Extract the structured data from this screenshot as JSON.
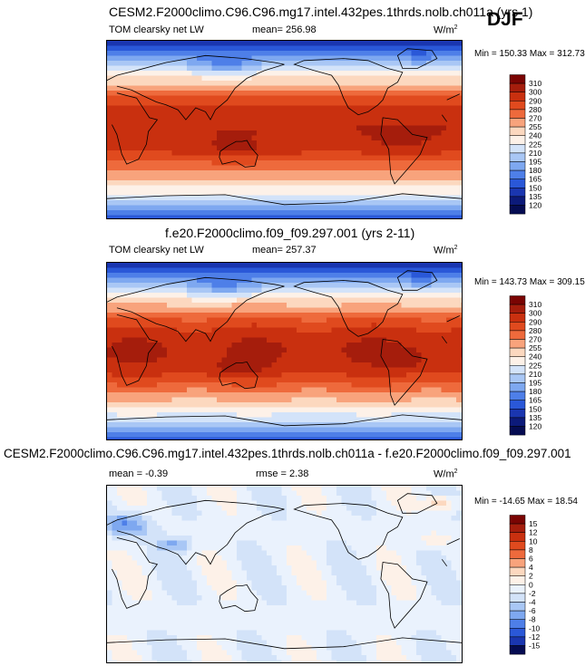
{
  "season": "DJF",
  "chart_data": [
    {
      "type": "heatmap",
      "title": "CESM2.F2000climo.C96.C96.mg17.intel.432pes.1thrds.nolb.ch011a (yrs 1)",
      "variable": "TOM clearsky net LW",
      "stat1_label": "mean=",
      "stat1_value": "256.98",
      "units_base": "W/m",
      "units_exp": "2",
      "min_label": "Min =",
      "min_value": "150.33",
      "max_label": "Max =",
      "max_value": "312.73",
      "colorbar": [
        "310",
        "300",
        "290",
        "280",
        "270",
        "255",
        "240",
        "225",
        "210",
        "195",
        "180",
        "165",
        "150",
        "135",
        "120"
      ],
      "colors": [
        "#7a0403",
        "#a51d0c",
        "#c9300f",
        "#e04a1e",
        "#ee6a3c",
        "#f8a37c",
        "#fcd8bf",
        "#fdf1e8",
        "#d3e3f9",
        "#a9c7f5",
        "#7ea8f0",
        "#4e7fe8",
        "#2a58d8",
        "#1a36b0",
        "#0c1a7a",
        "#050c52"
      ]
    },
    {
      "type": "heatmap",
      "title": "f.e20.F2000climo.f09_f09.297.001 (yrs 2-11)",
      "variable": "TOM clearsky net LW",
      "stat1_label": "mean=",
      "stat1_value": "257.37",
      "units_base": "W/m",
      "units_exp": "2",
      "min_label": "Min =",
      "min_value": "143.73",
      "max_label": "Max =",
      "max_value": "309.15",
      "colorbar": [
        "310",
        "300",
        "290",
        "280",
        "270",
        "255",
        "240",
        "225",
        "210",
        "195",
        "180",
        "165",
        "150",
        "135",
        "120"
      ],
      "colors": [
        "#7a0403",
        "#a51d0c",
        "#c9300f",
        "#e04a1e",
        "#ee6a3c",
        "#f8a37c",
        "#fcd8bf",
        "#fdf1e8",
        "#d3e3f9",
        "#a9c7f5",
        "#7ea8f0",
        "#4e7fe8",
        "#2a58d8",
        "#1a36b0",
        "#0c1a7a",
        "#050c52"
      ]
    },
    {
      "type": "heatmap",
      "title": "CESM2.F2000climo.C96.C96.mg17.intel.432pes.1thrds.nolb.ch011a - f.e20.F2000climo.f09_f09.297.001",
      "stat1_label": "mean =",
      "stat1_value": "-0.39",
      "stat2_label": "rmse =",
      "stat2_value": "2.38",
      "units_base": "W/m",
      "units_exp": "2",
      "min_label": "Min =",
      "min_value": "-14.65",
      "max_label": "Max =",
      "max_value": "18.54",
      "colorbar": [
        "15",
        "12",
        "10",
        "8",
        "6",
        "4",
        "2",
        "0",
        "-2",
        "-4",
        "-6",
        "-8",
        "-10",
        "-12",
        "-15"
      ],
      "colors": [
        "#7a0403",
        "#a51d0c",
        "#c9300f",
        "#e04a1e",
        "#ee6a3c",
        "#f8a37c",
        "#fcd8bf",
        "#fdf1e8",
        "#eaf2fd",
        "#d3e3f9",
        "#a9c7f5",
        "#7ea8f0",
        "#4e7fe8",
        "#2a58d8",
        "#1a36b0",
        "#050c52"
      ]
    }
  ]
}
